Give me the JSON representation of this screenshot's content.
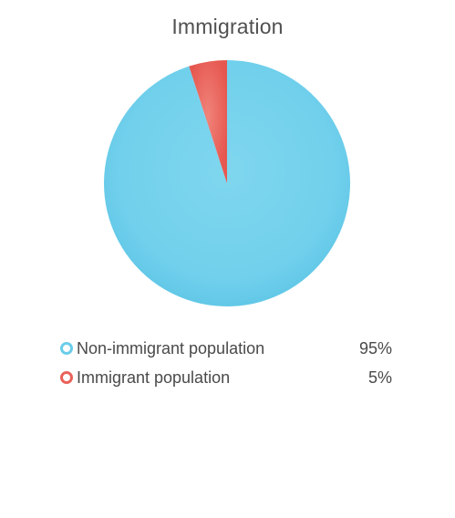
{
  "chart_data": {
    "type": "pie",
    "title": "Immigration",
    "categories": [
      "Non-immigrant population",
      "Immigrant population"
    ],
    "values": [
      95,
      5
    ],
    "value_labels": [
      "95%",
      "5%"
    ],
    "colors": [
      "#6bcde9",
      "#e9625a"
    ],
    "legend_position": "bottom",
    "start_angle": "12 o'clock",
    "direction": "counterclockwise-second-slice"
  }
}
